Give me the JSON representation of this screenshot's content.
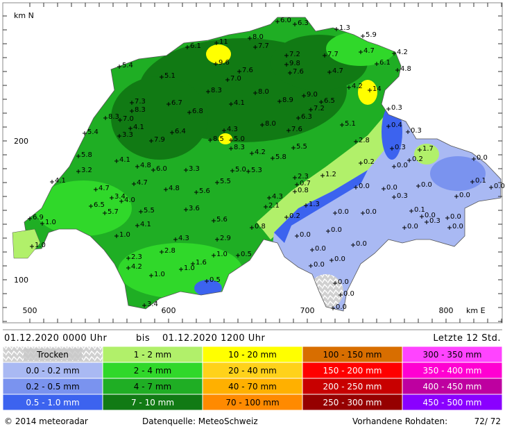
{
  "map": {
    "y_axis_label": "km N",
    "x_axis_label": "km E",
    "y_labels": [
      "200",
      "100"
    ],
    "x_labels": [
      "500",
      "600",
      "700",
      "800"
    ],
    "stations": [
      "6.0",
      "6.3",
      "1.3",
      "5.9",
      "11",
      "8.0",
      "7.7",
      "6.1",
      "7.2",
      "7.7",
      "4.7",
      "4.2",
      "6.1",
      "4.8",
      "9.6",
      "5.4",
      "7.6",
      "9.8",
      "7.6",
      "4.7",
      "5.1",
      "7.0",
      "4.2",
      "14",
      "8.3",
      "8.0",
      "9.0",
      "6.7",
      "7.3",
      "4.1",
      "8.9",
      "6.5",
      "7.2",
      "0.3",
      "8.3",
      "6.8",
      "8.3",
      "7.0",
      "6.3",
      "5.1",
      "0.4",
      "0.3",
      "4.1",
      "5.4",
      "3.3",
      "6.4",
      "4.3",
      "8.0",
      "7.6",
      "7.9",
      "8.5",
      "5.0",
      "8.3",
      "2.8",
      "5.5",
      "1.7",
      "0.3",
      "5.8",
      "4.2",
      "5.8",
      "0.2",
      "0.0",
      "4.1",
      "4.8",
      "6.0",
      "3.3",
      "0.2",
      "0.0",
      "3.2",
      "5.0",
      "5.3",
      "1.2",
      "2.3",
      "0.7",
      "4.1",
      "4.7",
      "5.5",
      "0.1",
      "0.0",
      "4.7",
      "4.8",
      "5.6",
      "0.8",
      "0.0",
      "0.0",
      "0.0",
      "3.4",
      "4.0",
      "4.3",
      "0.3",
      "0.0",
      "6.5",
      "2.1",
      "1.3",
      "5.7",
      "5.5",
      "3.6",
      "0.1",
      "0.0",
      "0.0",
      "0.2",
      "6.9",
      "1.0",
      "0.0",
      "0.3",
      "0.0",
      "0.0",
      "0.0",
      "4.1",
      "5.6",
      "0.8",
      "0.0",
      "0.0",
      "1.0",
      "4.3",
      "2.9",
      "1.0",
      "0.0",
      "2.8",
      "1.0",
      "0.5",
      "0.0",
      "2.3",
      "1.6",
      "0.0",
      "4.2",
      "1.0",
      "0.0",
      "1.0",
      "0.5",
      "0.0",
      "0.0",
      "3.4",
      "0.0"
    ]
  },
  "period": {
    "from": "01.12.2020 0000 Uhr",
    "between": "bis",
    "to": "01.12.2020 1200 Uhr",
    "window": "Letzte 12 Std."
  },
  "legend": [
    [
      {
        "label": "Trocken",
        "color": "#c8c8c8"
      },
      {
        "label": "0.0 - 0.2 mm",
        "color": "#a9b9f3"
      },
      {
        "label": "0.2 - 0.5 mm",
        "color": "#7a93ef"
      },
      {
        "label": "0.5 - 1.0 mm",
        "color": "#3c63ef"
      }
    ],
    [
      {
        "label": "1 - 2 mm",
        "color": "#b1f06a"
      },
      {
        "label": "2 - 4 mm",
        "color": "#30d82a"
      },
      {
        "label": "4 - 7 mm",
        "color": "#1fae24"
      },
      {
        "label": "7 - 10 mm",
        "color": "#117a14"
      }
    ],
    [
      {
        "label": "10 - 20 mm",
        "color": "#ffff00"
      },
      {
        "label": "20 - 40 mm",
        "color": "#ffd21a"
      },
      {
        "label": "40 - 70 mm",
        "color": "#ffb000"
      },
      {
        "label": "70 - 100 mm",
        "color": "#ff8a00"
      }
    ],
    [
      {
        "label": "100 - 150 mm",
        "color": "#d86e00"
      },
      {
        "label": "150 - 200 mm",
        "color": "#ff0000"
      },
      {
        "label": "200 - 250 mm",
        "color": "#c80000"
      },
      {
        "label": "250 - 300 mm",
        "color": "#960000"
      }
    ],
    [
      {
        "label": "300 - 350 mm",
        "color": "#ff44ff"
      },
      {
        "label": "350 - 400 mm",
        "color": "#ff00d2"
      },
      {
        "label": "400 - 450 mm",
        "color": "#be00a0"
      },
      {
        "label": "450 - 500 mm",
        "color": "#8a00ff"
      }
    ]
  ],
  "footer": {
    "copyright": "© 2014 meteoradar",
    "source": "Datenquelle: MeteoSchweiz",
    "raw_label": "Vorhandene Rohdaten:",
    "raw_value": "72/ 72"
  }
}
